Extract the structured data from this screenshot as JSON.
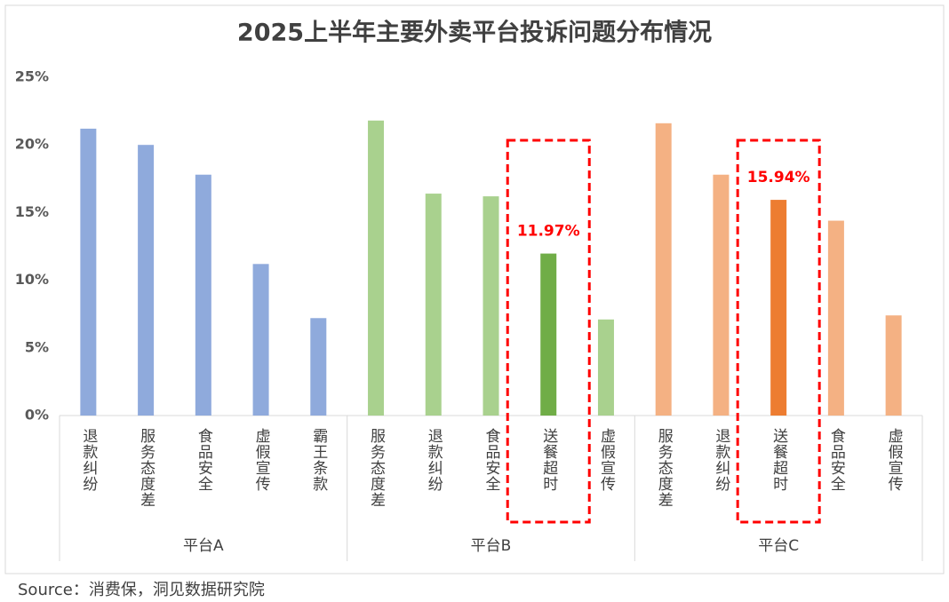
{
  "chart_data": {
    "type": "bar",
    "title": "2025上半年主要外卖平台投诉问题分布情况",
    "source": "Source：消费保，洞见数据研究院",
    "ylim": [
      0,
      25
    ],
    "yticks": [
      {
        "value": 0,
        "label": "0%"
      },
      {
        "value": 5,
        "label": "5%"
      },
      {
        "value": 10,
        "label": "10%"
      },
      {
        "value": 15,
        "label": "15%"
      },
      {
        "value": 20,
        "label": "20%"
      },
      {
        "value": 25,
        "label": "25%"
      }
    ],
    "groups": [
      {
        "name": "平台A",
        "categories": [
          "退款纠纷",
          "服务态度差",
          "食品安全",
          "虚假宣传",
          "霸王条款"
        ],
        "values": [
          21.2,
          20.0,
          17.8,
          11.2,
          7.2
        ],
        "colors": [
          "#8faadc",
          "#8faadc",
          "#8faadc",
          "#8faadc",
          "#8faadc"
        ],
        "value_labels": [
          null,
          null,
          null,
          null,
          null
        ]
      },
      {
        "name": "平台B",
        "categories": [
          "服务态度差",
          "退款纠纷",
          "食品安全",
          "送餐超时",
          "虚假宣传"
        ],
        "values": [
          21.8,
          16.4,
          16.2,
          11.97,
          7.1
        ],
        "colors": [
          "#a9d18e",
          "#a9d18e",
          "#a9d18e",
          "#70ad47",
          "#a9d18e"
        ],
        "value_labels": [
          null,
          null,
          null,
          "11.97%",
          null
        ]
      },
      {
        "name": "平台C",
        "categories": [
          "服务态度差",
          "退款纠纷",
          "送餐超时",
          "食品安全",
          "虚假宣传"
        ],
        "values": [
          21.6,
          17.8,
          15.94,
          14.4,
          7.4
        ],
        "colors": [
          "#f4b183",
          "#f4b183",
          "#ed7d31",
          "#f4b183",
          "#f4b183"
        ],
        "value_labels": [
          null,
          null,
          "15.94%",
          null,
          null
        ]
      }
    ]
  }
}
